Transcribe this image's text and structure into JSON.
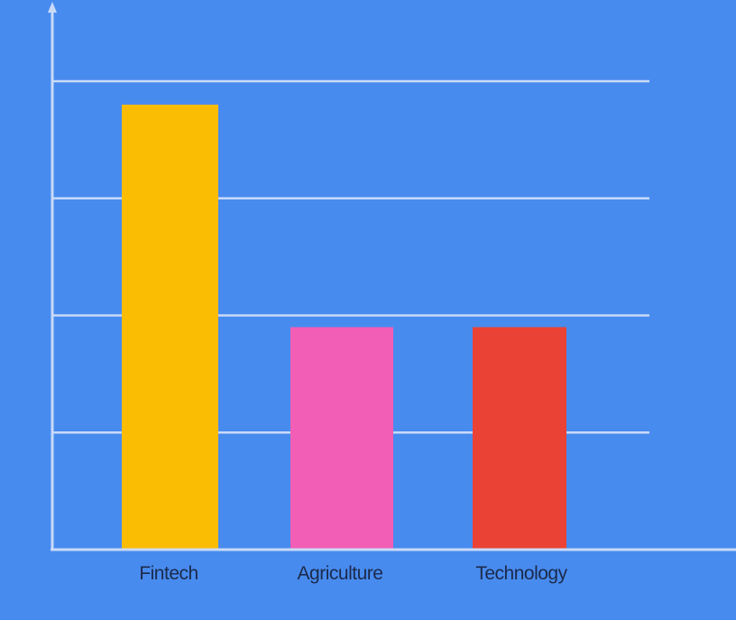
{
  "colors": {
    "background": "#488bef",
    "grid": "#c9daf8",
    "axis": "#c9daf8",
    "label": "#1b2a4a"
  },
  "chart_data": {
    "type": "bar",
    "categories": [
      "Fintech",
      "Agriculture",
      "Technology"
    ],
    "values": [
      38,
      19,
      19
    ],
    "ylim": [
      0,
      40
    ],
    "y_gridlines": [
      10,
      20,
      30,
      40
    ],
    "grid": true,
    "legend": "none",
    "bar_colors": [
      "#fbbc04",
      "#f25db6",
      "#ea4335"
    ]
  }
}
